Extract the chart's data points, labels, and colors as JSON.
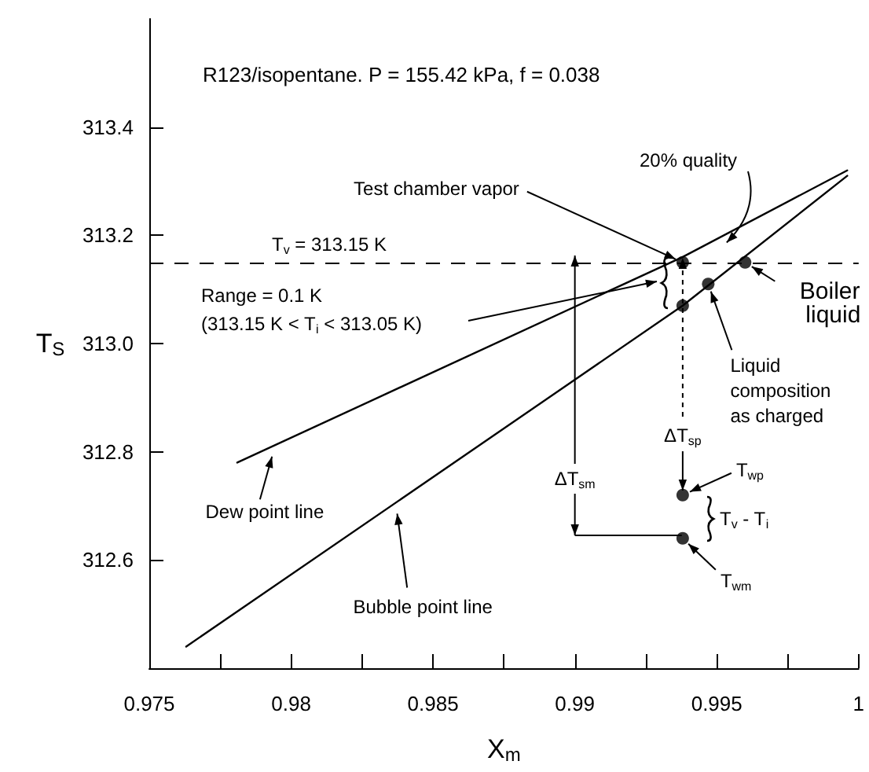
{
  "chart_data": {
    "type": "line",
    "title": "R123/isopentane. P = 155.42 kPa, f = 0.038",
    "xlabel": "X$_{m}$",
    "ylabel": "T$_{S}$",
    "xlim": [
      0.975,
      1
    ],
    "xticks": [
      0.975,
      {
        "value": 0.9775,
        "label": null
      },
      0.98,
      {
        "value": 0.9825,
        "label": null
      },
      0.985,
      {
        "value": 0.9875,
        "label": null
      },
      0.99,
      {
        "value": 0.9925,
        "label": null
      },
      0.995,
      {
        "value": 0.9975,
        "label": null
      },
      1
    ],
    "ylim": [
      312.4,
      313.6
    ],
    "yticks": [
      312.6,
      312.8,
      {
        "value": 313,
        "label": "313.0"
      },
      313.2,
      313.4
    ],
    "grid": false,
    "series": [
      {
        "type": "line",
        "color": "#000000",
        "x": [
          0.9781,
          0.9938,
          0.9996
        ],
        "values": [
          312.78,
          313.16,
          313.32
        ],
        "marker": "none"
      },
      {
        "type": "line",
        "color": "#000000",
        "x": [
          0.9763,
          0.9938,
          0.9996
        ],
        "values": [
          312.44,
          313.07,
          313.31
        ],
        "marker": "none"
      },
      {
        "type": "scatter",
        "color": "#000000",
        "x": [
          0.9938,
          0.9938,
          0.9947,
          0.996,
          0.9938,
          0.9938
        ],
        "values": [
          313.15,
          313.07,
          313.11,
          313.15,
          312.72,
          312.64
        ],
        "marker": "circle"
      }
    ],
    "ref_lines": [
      {
        "axis": "y",
        "value": 313.15,
        "label": "T$_{v}$ = 313.15 K",
        "line_style": "dashed",
        "color": "#000000"
      }
    ],
    "annotations": [
      {
        "text": "Test chamber vapor",
        "x": 0.9938,
        "y": 313.15
      },
      "20% quality",
      {
        "text": "Boiler liquid",
        "x": 0.996,
        "y": 313.15
      },
      {
        "text": "Liquid composition as charged",
        "x": 0.9947,
        "y": 313.11
      },
      "Range = 0.1 K\n(313.15 K < T$_{i}$ < 313.05 K)",
      {
        "text": "Dew point line",
        "x": 0.9794,
        "y": 312.805
      },
      {
        "text": "Bubble point line",
        "x": 0.9837,
        "y": 312.7
      },
      {
        "text": "T$_{wp}$",
        "x": 0.9938,
        "y": 312.72
      },
      {
        "text": "T$_{wm}$",
        "x": 0.9938,
        "y": 312.64
      },
      "T$_{v}$ - T$_{i}$",
      {
        "text": "ΔT$_{sm}$",
        "x": 0.99,
        "y": 312.75
      },
      {
        "text": "ΔT$_{sp}$",
        "x": 0.9938,
        "y": 312.83
      }
    ]
  }
}
